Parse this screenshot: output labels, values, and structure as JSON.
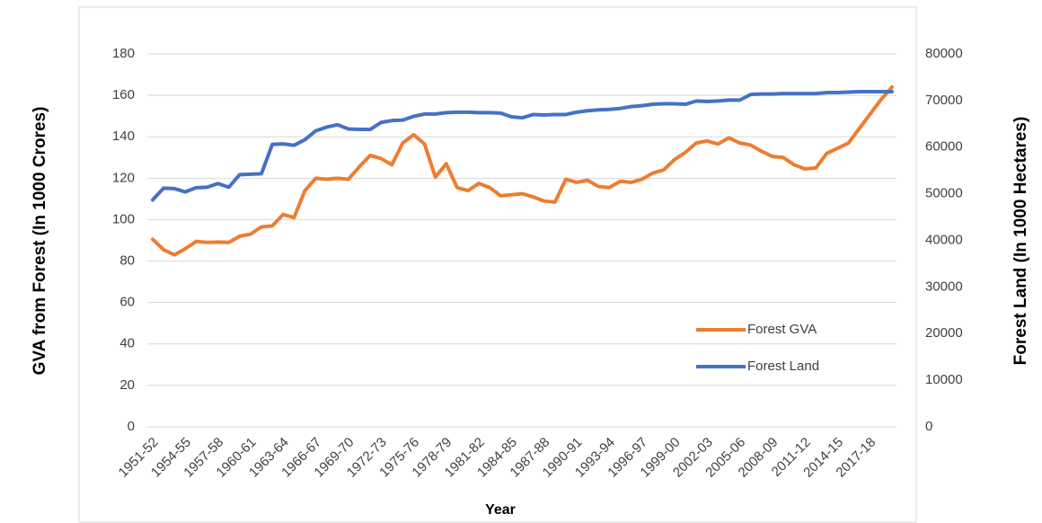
{
  "chart_data": {
    "type": "line",
    "x_label": "Year",
    "y_label": "GVA from Forest (In 1000 Crores)",
    "y2_label": "Forest Land (In 1000 Hectares)",
    "categories": [
      "1951-52",
      null,
      null,
      "1954-55",
      null,
      null,
      "1957-58",
      null,
      null,
      "1960-61",
      null,
      null,
      "1963-64",
      null,
      null,
      "1966-67",
      null,
      null,
      "1969-70",
      null,
      null,
      "1972-73",
      null,
      null,
      "1975-76",
      null,
      null,
      "1978-79",
      null,
      null,
      "1981-82",
      null,
      null,
      "1984-85",
      null,
      null,
      "1987-88",
      null,
      null,
      "1990-91",
      null,
      null,
      "1993-94",
      null,
      null,
      "1996-97",
      null,
      null,
      "1999-00",
      null,
      null,
      "2002-03",
      null,
      null,
      "2005-06",
      null,
      null,
      "2008-09",
      null,
      null,
      "2011-12",
      null,
      null,
      "2014-15",
      null,
      null,
      "2017-18",
      null,
      null
    ],
    "series": [
      {
        "name": "Forest GVA",
        "color": "#ed7d31",
        "values": [
          90.5,
          85.5,
          83,
          86,
          89.5,
          89,
          89.2,
          89,
          92,
          93,
          96.5,
          97,
          102.5,
          101,
          114,
          120,
          119.5,
          120,
          119.5,
          125.5,
          131,
          129.5,
          126.5,
          137,
          141,
          136.5,
          120.5,
          127,
          115.5,
          114,
          117.5,
          115.5,
          111.5,
          112,
          112.5,
          111,
          109,
          108.5,
          119.5,
          118,
          119,
          116,
          115.5,
          118.5,
          118,
          119.5,
          122.5,
          124,
          129,
          132.5,
          137,
          138,
          136.5,
          139.5,
          137,
          136,
          133,
          130.5,
          130,
          126.5,
          124.5,
          125,
          132,
          134.5,
          137,
          144,
          151,
          158,
          164
        ]
      },
      {
        "name": "Forest Land",
        "color": "#4472c4",
        "axis": "y2",
        "values": [
          48700,
          51200,
          51100,
          50400,
          51300,
          51400,
          52200,
          51400,
          54100,
          54200,
          54300,
          60600,
          60700,
          60400,
          61600,
          63500,
          64300,
          64800,
          63900,
          63800,
          63800,
          65300,
          65700,
          65800,
          66600,
          67100,
          67100,
          67400,
          67500,
          67500,
          67400,
          67400,
          67300,
          66500,
          66300,
          67000,
          66900,
          67000,
          67000,
          67500,
          67800,
          68000,
          68100,
          68300,
          68700,
          68900,
          69200,
          69300,
          69300,
          69200,
          69900,
          69800,
          69900,
          70100,
          70100,
          71300,
          71400,
          71400,
          71500,
          71500,
          71500,
          71500,
          71700,
          71700,
          71800,
          71900,
          71900,
          71900,
          71900
        ]
      }
    ],
    "ylim": [
      0,
      180
    ],
    "yticks": [
      0,
      20,
      40,
      60,
      80,
      100,
      120,
      140,
      160,
      180
    ],
    "y2lim": [
      0,
      80000
    ],
    "y2ticks": [
      0,
      10000,
      20000,
      30000,
      40000,
      50000,
      60000,
      70000,
      80000
    ],
    "grid": true
  }
}
